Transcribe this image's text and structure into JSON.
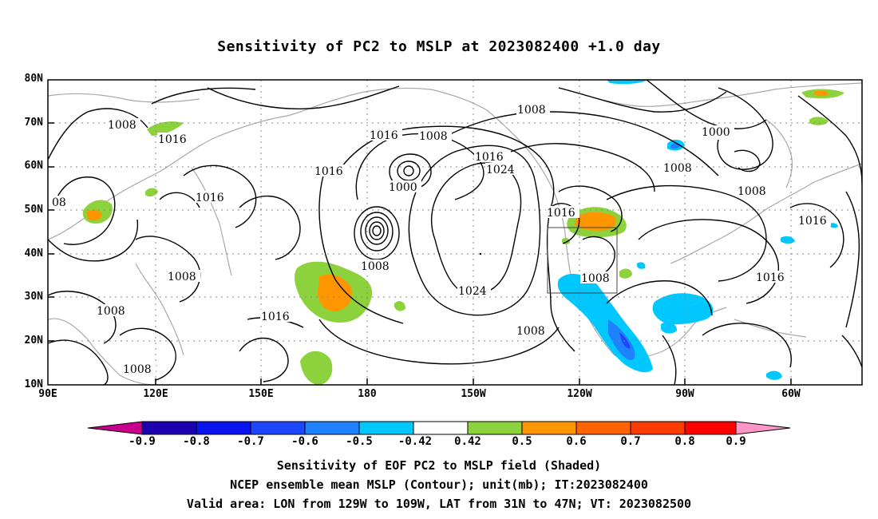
{
  "title": "Sensitivity of PC2 to MSLP at 2023082400 +1.0 day",
  "map": {
    "lat_ticks": [
      "80N",
      "70N",
      "60N",
      "50N",
      "40N",
      "30N",
      "20N",
      "10N"
    ],
    "lon_ticks": [
      "90E",
      "120E",
      "150E",
      "180",
      "150W",
      "120W",
      "90W",
      "60W"
    ],
    "lon_range": [
      90,
      315
    ],
    "lat_range": [
      10,
      80
    ],
    "valid_box": {
      "lon_min": -129,
      "lon_max": -109,
      "lat_min": 31,
      "lat_max": 47
    },
    "contour_labels": [
      "1008",
      "1016",
      "1008",
      "1016",
      "1008",
      "1000",
      "1016",
      "1024",
      "1008",
      "1016",
      "1016",
      "1000",
      "1008",
      "1016",
      "1016",
      "1008",
      "1016",
      "1008",
      "1024",
      "1008",
      "1008",
      "1008",
      "1016",
      "1008",
      "08"
    ]
  },
  "colorbar": {
    "labels": [
      "-0.9",
      "-0.8",
      "-0.7",
      "-0.6",
      "-0.5",
      "-0.42",
      "0.42",
      "0.5",
      "0.6",
      "0.7",
      "0.8",
      "0.9"
    ],
    "colors": [
      "#1d00b0",
      "#0a14f0",
      "#1e46ff",
      "#1e82ff",
      "#00c8ff",
      "#ffffff",
      "#8cd23c",
      "#ff9600",
      "#ff6400",
      "#ff3c00",
      "#ff0000"
    ],
    "low_end_color": "#c8008c",
    "high_end_color": "#ff96c8"
  },
  "footer": {
    "line1": "Sensitivity of EOF PC2 to MSLP field (Shaded)",
    "line2": "NCEP ensemble mean MSLP (Contour); unit(mb); IT:2023082400",
    "line3": "Valid area: LON from 129W to 109W, LAT from 31N to 47N; VT: 2023082500"
  }
}
